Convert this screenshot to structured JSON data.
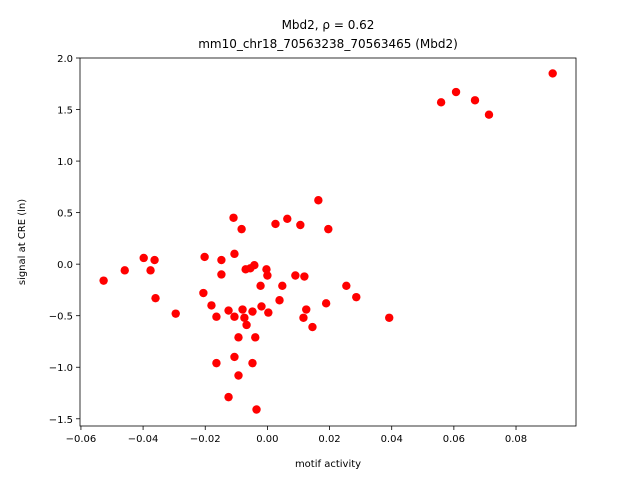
{
  "chart_data": {
    "type": "scatter",
    "title": "Mbd2, ρ = 0.62",
    "subtitle": "mm10_chr18_70563238_70563465 (Mbd2)",
    "x_label": "motif activity",
    "y_label": "signal at CRE (ln)",
    "color": "#ff0000",
    "xlim": [
      -0.0603,
      0.0993
    ],
    "ylim": [
      -1.57,
      2.0
    ],
    "xticks": [
      {
        "value": -0.06,
        "label": "−0.06"
      },
      {
        "value": -0.04,
        "label": "−0.04"
      },
      {
        "value": -0.02,
        "label": "−0.02"
      },
      {
        "value": 0,
        "label": "0.00"
      },
      {
        "value": 0.02,
        "label": "0.02"
      },
      {
        "value": 0.04,
        "label": "0.04"
      },
      {
        "value": 0.06,
        "label": "0.06"
      },
      {
        "value": 0.08,
        "label": "0.08"
      }
    ],
    "yticks": [
      {
        "value": -1.5,
        "label": "−1.5"
      },
      {
        "value": -1.0,
        "label": "−1.0"
      },
      {
        "value": -0.5,
        "label": "−0.5"
      },
      {
        "value": 0,
        "label": "0.0"
      },
      0.5,
      {
        "value": 1.0,
        "label": "1.0"
      },
      1.5,
      {
        "value": 2.0,
        "label": "2.0"
      }
    ],
    "x": [
      -0.0527,
      -0.0459,
      -0.0398,
      -0.0376,
      -0.0363,
      -0.036,
      -0.0295,
      -0.0206,
      -0.0202,
      -0.018,
      -0.0164,
      -0.0164,
      -0.0148,
      -0.0148,
      -0.0125,
      -0.0125,
      -0.0109,
      -0.0106,
      -0.0106,
      -0.0106,
      -0.0093,
      -0.0093,
      -0.0083,
      -0.008,
      -0.0074,
      -0.0067,
      -0.007,
      -0.0055,
      -0.0048,
      -0.0048,
      -0.0042,
      -0.0039,
      -0.0035,
      -0.0022,
      -0.0019,
      -0.0003,
      0.0,
      0.0003,
      0.0026,
      0.0039,
      0.0048,
      0.0064,
      0.009,
      0.0106,
      0.0116,
      0.0119,
      0.0125,
      0.0145,
      0.0164,
      0.0189,
      0.0196,
      0.0254,
      0.0286,
      0.0392,
      0.0559,
      0.0607,
      0.0668,
      0.0713,
      0.0918
    ],
    "values": [
      -0.16,
      -0.06,
      0.06,
      -0.06,
      0.04,
      -0.33,
      -0.48,
      -0.28,
      0.07,
      -0.4,
      -0.51,
      -0.96,
      0.04,
      -0.1,
      -1.29,
      -0.45,
      0.45,
      0.1,
      -0.51,
      -0.9,
      -0.71,
      -1.08,
      0.34,
      -0.44,
      -0.52,
      -0.59,
      -0.05,
      -0.04,
      -0.46,
      -0.96,
      -0.01,
      -0.71,
      -1.41,
      -0.21,
      -0.41,
      -0.05,
      -0.11,
      -0.47,
      0.39,
      -0.35,
      -0.21,
      0.44,
      -0.11,
      0.38,
      -0.52,
      -0.12,
      -0.44,
      -0.61,
      0.62,
      -0.38,
      0.34,
      -0.21,
      -0.32,
      -0.52,
      1.57,
      1.67,
      1.59,
      1.45,
      1.85
    ]
  }
}
